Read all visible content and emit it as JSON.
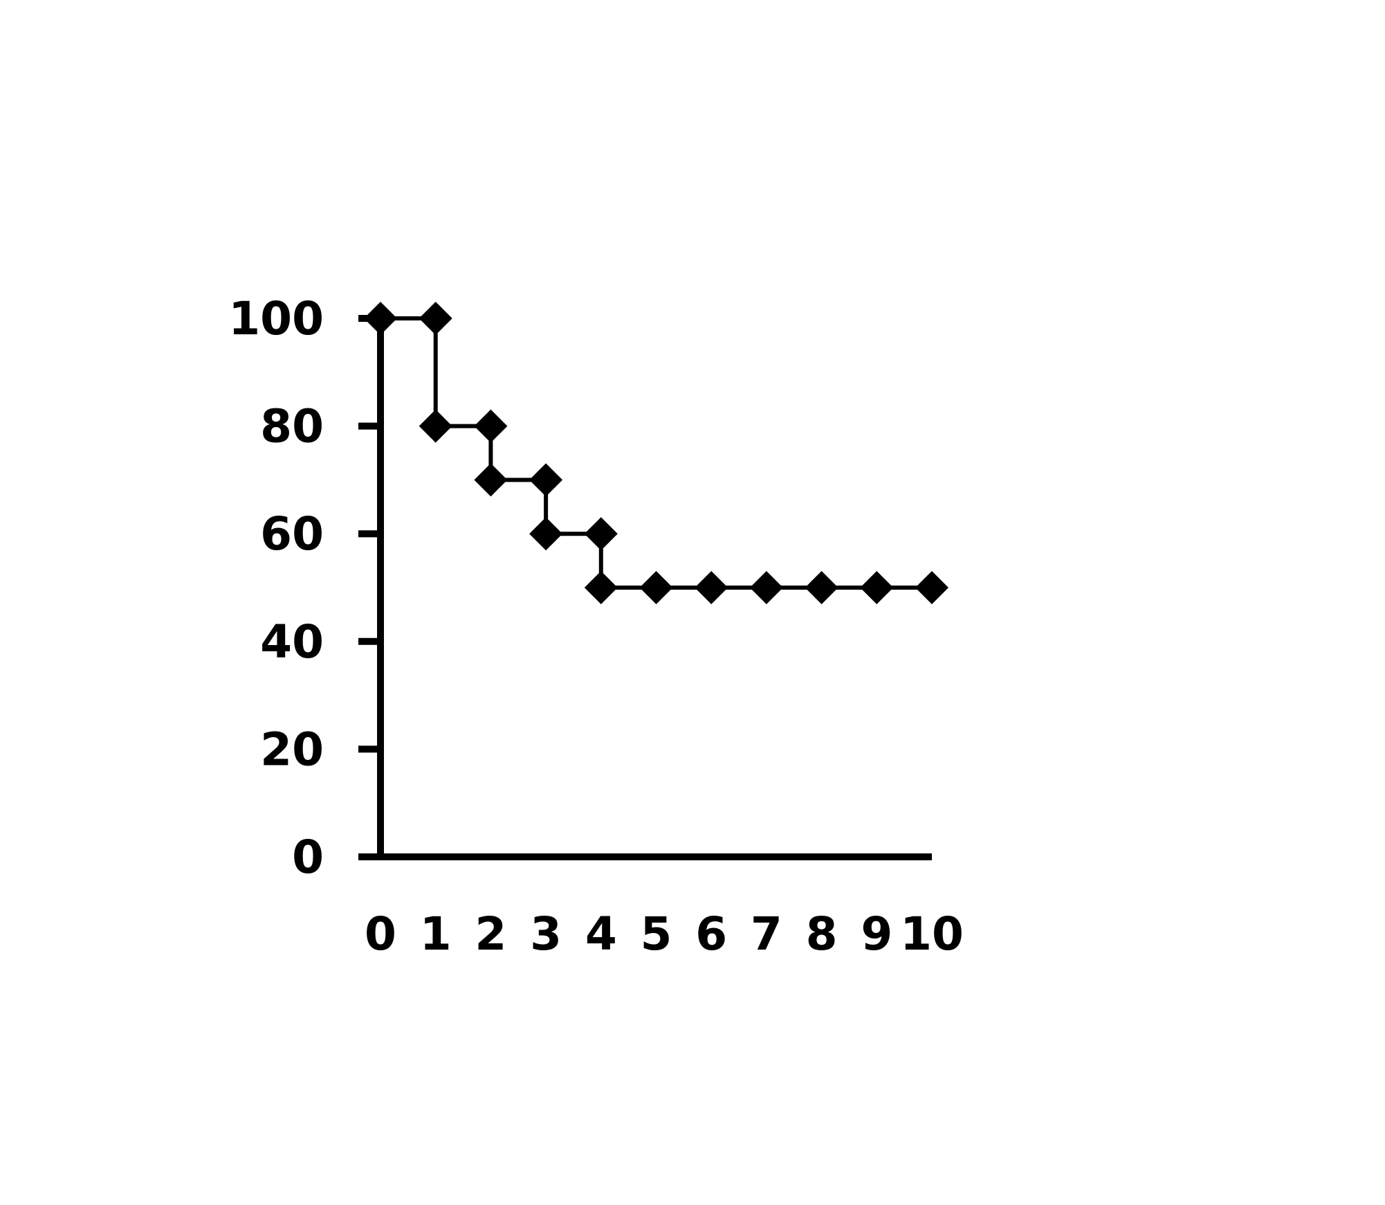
{
  "chart_data": {
    "type": "line",
    "step": "post",
    "title": "",
    "xlabel": "",
    "ylabel": "",
    "xlim": [
      0,
      10
    ],
    "ylim": [
      0,
      100
    ],
    "x_ticks": [
      "0",
      "1",
      "2",
      "3",
      "4",
      "5",
      "6",
      "7",
      "8",
      "9",
      "10"
    ],
    "y_ticks": [
      "0",
      "20",
      "40",
      "60",
      "80",
      "100"
    ],
    "grid": false,
    "legend": "none",
    "marker": "diamond",
    "series": [
      {
        "points": [
          {
            "x": 0,
            "y": 100
          },
          {
            "x": 1,
            "y": 100
          },
          {
            "x": 1,
            "y": 80
          },
          {
            "x": 2,
            "y": 80
          },
          {
            "x": 2,
            "y": 70
          },
          {
            "x": 3,
            "y": 70
          },
          {
            "x": 3,
            "y": 60
          },
          {
            "x": 4,
            "y": 60
          },
          {
            "x": 4,
            "y": 50
          },
          {
            "x": 5,
            "y": 50
          },
          {
            "x": 6,
            "y": 50
          },
          {
            "x": 7,
            "y": 50
          },
          {
            "x": 8,
            "y": 50
          },
          {
            "x": 9,
            "y": 50
          },
          {
            "x": 10,
            "y": 50
          }
        ]
      }
    ],
    "colors": {
      "line": "#000000",
      "marker": "#000000",
      "axis": "#000000"
    }
  }
}
